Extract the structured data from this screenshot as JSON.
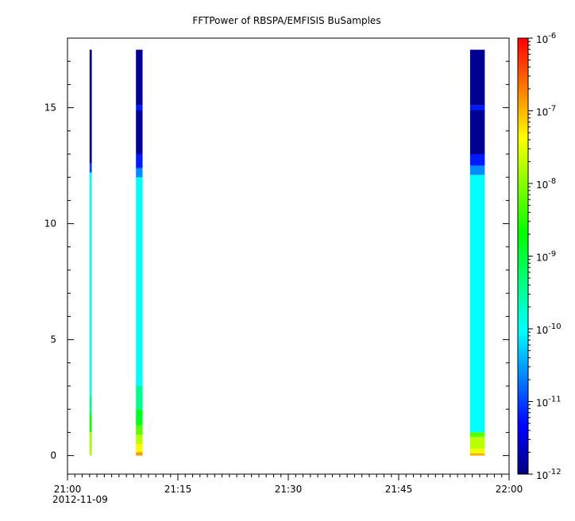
{
  "chart_data": {
    "type": "heatmap",
    "title": "FFTPower of RBSPA/EMFISIS  BuSamples",
    "xlabel": "",
    "ylabel": "",
    "x_axis": {
      "start": "21:00",
      "end": "22:00",
      "date": "2012-11-09",
      "tick_labels": [
        "21:00",
        "21:15",
        "21:30",
        "21:45",
        "22:00"
      ],
      "tick_minutes": [
        0,
        15,
        30,
        45,
        60
      ],
      "minor_step_minutes": 1
    },
    "y_axis": {
      "range": [
        -0.8,
        18.0
      ],
      "tick_labels": [
        "0",
        "5",
        "10",
        "15"
      ],
      "tick_values": [
        0,
        5,
        10,
        15
      ],
      "minor_step": 1
    },
    "colorbar": {
      "scale": "log",
      "range": [
        1e-12,
        1e-06
      ],
      "tick_labels": [
        {
          "base": "10",
          "exp": "-12"
        },
        {
          "base": "10",
          "exp": "-11"
        },
        {
          "base": "10",
          "exp": "-10"
        },
        {
          "base": "10",
          "exp": "-9"
        },
        {
          "base": "10",
          "exp": "-8"
        },
        {
          "base": "10",
          "exp": "-7"
        },
        {
          "base": "10",
          "exp": "-6"
        }
      ],
      "colors": [
        "#000080",
        "#0000ff",
        "#0080ff",
        "#00ffff",
        "#00ff80",
        "#00ff00",
        "#80ff00",
        "#ffff00",
        "#ff8000",
        "#ff0000"
      ]
    },
    "series": [
      {
        "time_start_min": 3.0,
        "time_end_min": 3.3,
        "bands": [
          {
            "y0": 0.0,
            "y1": 1.0,
            "log_power": -7.8
          },
          {
            "y0": 1.0,
            "y1": 1.8,
            "log_power": -8.6
          },
          {
            "y0": 1.8,
            "y1": 2.6,
            "log_power": -9.4
          },
          {
            "y0": 2.6,
            "y1": 12.2,
            "log_power": -10.0
          },
          {
            "y0": 12.2,
            "y1": 12.6,
            "log_power": -11.0
          },
          {
            "y0": 12.6,
            "y1": 17.5,
            "log_power": -11.9
          }
        ]
      },
      {
        "time_start_min": 9.3,
        "time_end_min": 10.2,
        "bands": [
          {
            "y0": 0.0,
            "y1": 0.15,
            "log_power": -6.8
          },
          {
            "y0": 0.15,
            "y1": 0.5,
            "log_power": -7.3
          },
          {
            "y0": 0.5,
            "y1": 0.9,
            "log_power": -7.7
          },
          {
            "y0": 0.9,
            "y1": 1.3,
            "log_power": -8.2
          },
          {
            "y0": 1.3,
            "y1": 2.0,
            "log_power": -8.8
          },
          {
            "y0": 2.0,
            "y1": 3.0,
            "log_power": -9.4
          },
          {
            "y0": 3.0,
            "y1": 12.0,
            "log_power": -10.0
          },
          {
            "y0": 12.0,
            "y1": 12.4,
            "log_power": -10.6
          },
          {
            "y0": 12.4,
            "y1": 13.0,
            "log_power": -11.2
          },
          {
            "y0": 13.0,
            "y1": 14.9,
            "log_power": -11.9
          },
          {
            "y0": 14.9,
            "y1": 15.1,
            "log_power": -11.2
          },
          {
            "y0": 15.1,
            "y1": 17.5,
            "log_power": -11.9
          }
        ]
      },
      {
        "time_start_min": 54.7,
        "time_end_min": 56.7,
        "bands": [
          {
            "y0": 0.0,
            "y1": 0.1,
            "log_power": -6.9
          },
          {
            "y0": 0.1,
            "y1": 0.3,
            "log_power": -7.4
          },
          {
            "y0": 0.3,
            "y1": 0.8,
            "log_power": -7.7
          },
          {
            "y0": 0.8,
            "y1": 1.0,
            "log_power": -8.2
          },
          {
            "y0": 1.0,
            "y1": 12.1,
            "log_power": -10.0
          },
          {
            "y0": 12.1,
            "y1": 12.5,
            "log_power": -10.6
          },
          {
            "y0": 12.5,
            "y1": 13.0,
            "log_power": -11.2
          },
          {
            "y0": 13.0,
            "y1": 14.9,
            "log_power": -11.9
          },
          {
            "y0": 14.9,
            "y1": 15.1,
            "log_power": -11.2
          },
          {
            "y0": 15.1,
            "y1": 17.5,
            "log_power": -11.9
          }
        ]
      }
    ]
  }
}
